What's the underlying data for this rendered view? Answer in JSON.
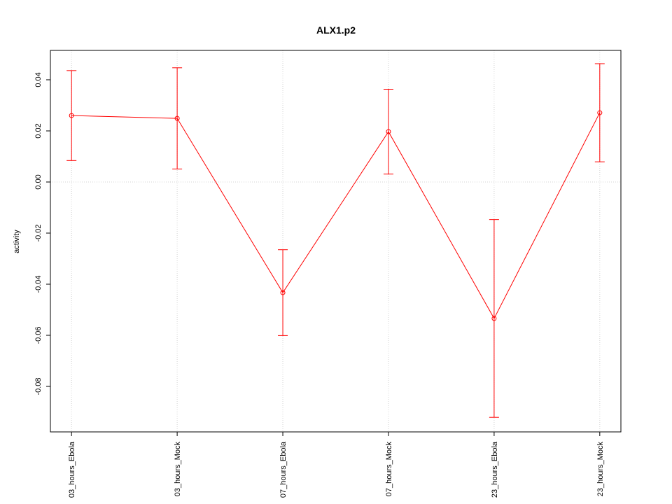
{
  "chart_data": {
    "type": "errorbar-line",
    "title": "ALX1.p2",
    "y_label": "activity",
    "categories": [
      "03_hours_Ebola",
      "03_hours_Mock",
      "07_hours_Ebola",
      "07_hours_Mock",
      "23_hours_Ebola",
      "23_hours_Mock"
    ],
    "series": [
      {
        "name": "activity",
        "color": "#ff0000",
        "values": [
          0.026,
          0.0249,
          -0.0433,
          0.0197,
          -0.0534,
          0.0271
        ],
        "errors": [
          0.0176,
          0.0198,
          0.0168,
          0.0166,
          0.0387,
          0.0192
        ]
      }
    ],
    "ylim": [
      -0.0978,
      0.0515
    ],
    "yticks": [
      {
        "value": -0.08,
        "label": "-0.08"
      },
      {
        "value": -0.06,
        "label": "-0.06"
      },
      {
        "value": -0.04,
        "label": "-0.04"
      },
      {
        "value": -0.02,
        "label": "-0.02"
      },
      {
        "value": 0,
        "label": "0.00"
      },
      {
        "value": 0.02,
        "label": "0.02"
      },
      {
        "value": 0.04,
        "label": "0.04"
      }
    ],
    "grid": true
  }
}
